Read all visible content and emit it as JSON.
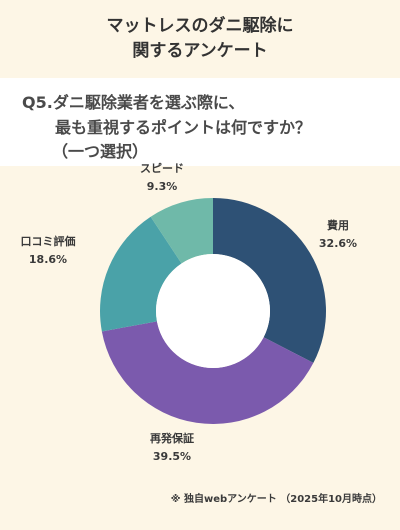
{
  "title": [
    "マットレスのダニ駆除に",
    "関するアンケート"
  ],
  "question": [
    "Q5.ダニ駆除業者を選ぶ際に、",
    "最も重視するポイントは何ですか？",
    "（一つ選択）"
  ],
  "footnote": "※ 独自webアンケート （2025年10月時点）",
  "chart_data": {
    "type": "pie",
    "donut": true,
    "categories": [
      "費用",
      "再発保証",
      "口コミ評価",
      "スピード"
    ],
    "values": [
      32.6,
      39.5,
      18.6,
      9.3
    ],
    "value_labels": [
      "32.6%",
      "39.5%",
      "18.6%",
      "9.3%"
    ],
    "colors": [
      "#2e5175",
      "#7b5aad",
      "#4aa2a8",
      "#6fb9a9"
    ],
    "start": "12 o'clock",
    "direction": "clockwise"
  }
}
